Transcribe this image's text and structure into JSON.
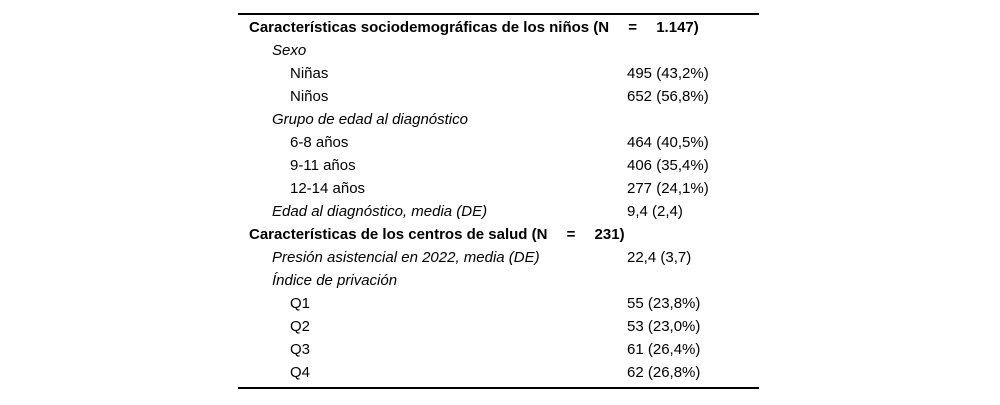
{
  "colors": {
    "background": "#ffffff",
    "text": "#000000",
    "rule": "#000000"
  },
  "table": {
    "rows": [
      {
        "style": "section",
        "label": "Características sociodemográficas de los niños (N  =  1.147)",
        "value": ""
      },
      {
        "style": "group",
        "label": "Sexo",
        "value": ""
      },
      {
        "style": "item",
        "label": "Niñas",
        "value": "495 (43,2%)"
      },
      {
        "style": "item",
        "label": "Niños",
        "value": "652 (56,8%)"
      },
      {
        "style": "group",
        "label": "Grupo de edad al diagnóstico",
        "value": ""
      },
      {
        "style": "item",
        "label": "6-8 años",
        "value": "464 (40,5%)"
      },
      {
        "style": "item",
        "label": "9-11 años",
        "value": "406 (35,4%)"
      },
      {
        "style": "item",
        "label": "12-14 años",
        "value": "277 (24,1%)"
      },
      {
        "style": "group",
        "label": "Edad al diagnóstico, media (DE)",
        "value": "9,4 (2,4)"
      },
      {
        "style": "section",
        "label": "Características de los centros de salud (N  =  231)",
        "value": ""
      },
      {
        "style": "group",
        "label": "Presión asistencial en 2022, media (DE)",
        "value": "22,4 (3,7)"
      },
      {
        "style": "group",
        "label": "Índice de privación",
        "value": ""
      },
      {
        "style": "item",
        "label": "Q1",
        "value": "55 (23,8%)"
      },
      {
        "style": "item",
        "label": "Q2",
        "value": "53 (23,0%)"
      },
      {
        "style": "item",
        "label": "Q3",
        "value": "61 (26,4%)"
      },
      {
        "style": "item",
        "label": "Q4",
        "value": "62 (26,8%)"
      }
    ]
  }
}
